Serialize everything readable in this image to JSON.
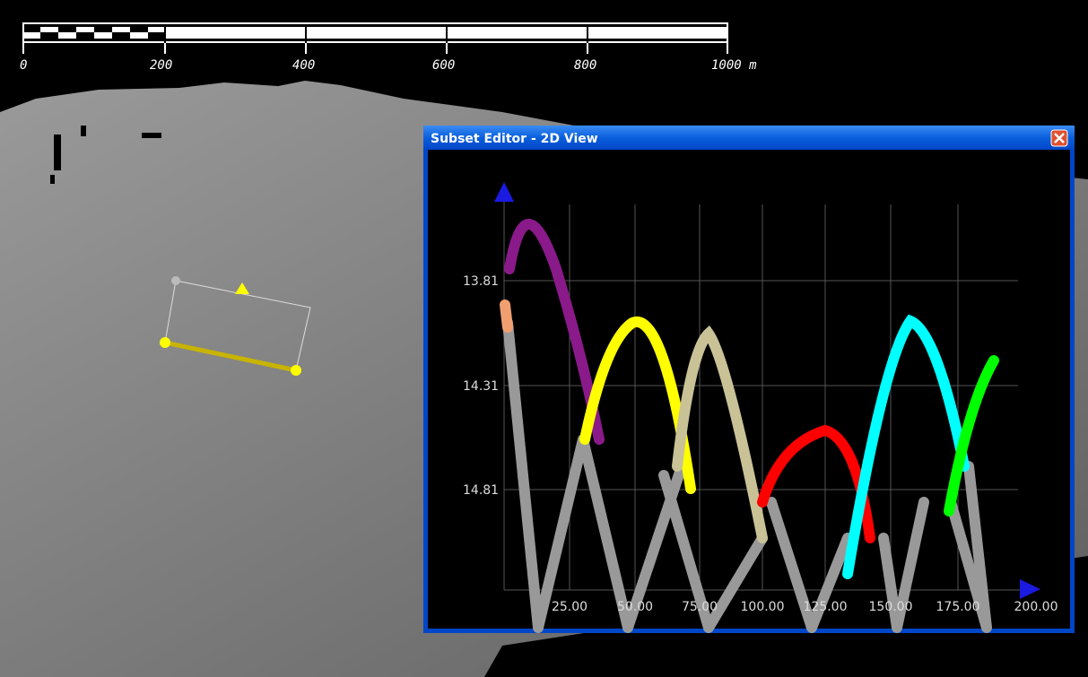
{
  "scale_bar": {
    "labels": [
      "0",
      "200",
      "400",
      "600",
      "800",
      "1000 m"
    ]
  },
  "window": {
    "title": "Subset Editor - 2D View",
    "y_tick_labels": [
      "13.81",
      "14.31",
      "14.81"
    ],
    "x_tick_labels": [
      "25.00",
      "50.00",
      "75.00",
      "100.00",
      "125.00",
      "150.00",
      "175.00",
      "200.00"
    ]
  }
}
